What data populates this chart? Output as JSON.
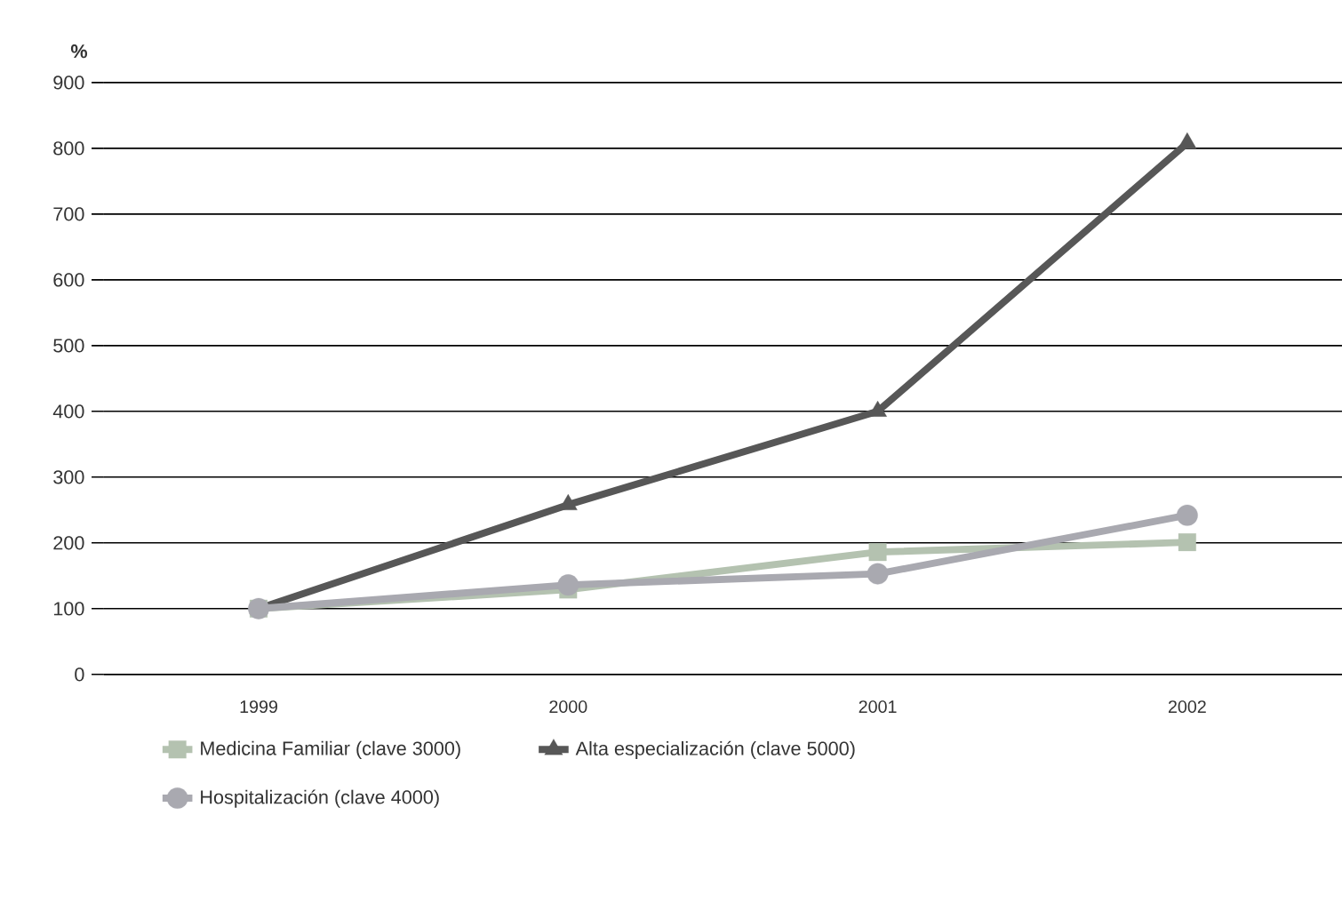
{
  "chart_data": {
    "type": "line",
    "ylabel": "%",
    "categories": [
      "1999",
      "2000",
      "2001",
      "2002"
    ],
    "series": [
      {
        "name": "Medicina Familiar (clave 3000)",
        "color": "#b4c2b0",
        "marker": "square",
        "values": [
          100,
          129,
          186,
          201
        ]
      },
      {
        "name": "Alta especialización (clave 5000)",
        "color": "#575757",
        "marker": "triangle",
        "values": [
          100,
          258,
          400,
          808
        ]
      },
      {
        "name": "Hospitalización (clave 4000)",
        "color": "#a9a9b0",
        "marker": "circle",
        "values": [
          100,
          136,
          153,
          242
        ]
      }
    ],
    "ylim": [
      0,
      900
    ],
    "yticks": [
      0,
      100,
      200,
      300,
      400,
      500,
      600,
      700,
      800,
      900
    ],
    "grid": "y",
    "legend": "bottom"
  }
}
